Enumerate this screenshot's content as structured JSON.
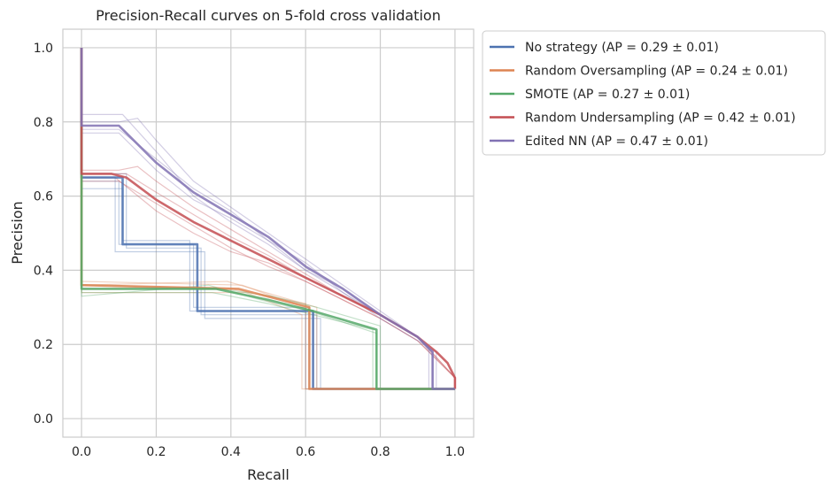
{
  "chart_data": {
    "type": "line",
    "title": "Precision-Recall curves on 5-fold cross validation",
    "xlabel": "Recall",
    "ylabel": "Precision",
    "xlim": [
      -0.05,
      1.05
    ],
    "ylim": [
      -0.05,
      1.05
    ],
    "xticks": [
      "0.0",
      "0.2",
      "0.4",
      "0.6",
      "0.8",
      "1.0"
    ],
    "yticks": [
      "0.0",
      "0.2",
      "0.4",
      "0.6",
      "0.8",
      "1.0"
    ],
    "grid": true,
    "legend_position": "outside-right",
    "series": [
      {
        "name": "No strategy (AP = 0.29 ± 0.01)",
        "color": "#4c72b0",
        "points": [
          [
            0,
            1
          ],
          [
            0,
            0.65
          ],
          [
            0.11,
            0.65
          ],
          [
            0.11,
            0.47
          ],
          [
            0.31,
            0.47
          ],
          [
            0.31,
            0.29
          ],
          [
            0.62,
            0.29
          ],
          [
            0.62,
            0.08
          ],
          [
            1,
            0.08
          ]
        ],
        "folds": [
          [
            [
              0,
              1
            ],
            [
              0,
              0.64
            ],
            [
              0.1,
              0.64
            ],
            [
              0.1,
              0.47
            ],
            [
              0.3,
              0.47
            ],
            [
              0.3,
              0.3
            ],
            [
              0.61,
              0.3
            ],
            [
              0.61,
              0.08
            ],
            [
              1,
              0.08
            ]
          ],
          [
            [
              0,
              1
            ],
            [
              0,
              0.66
            ],
            [
              0.12,
              0.66
            ],
            [
              0.12,
              0.46
            ],
            [
              0.32,
              0.46
            ],
            [
              0.32,
              0.28
            ],
            [
              0.63,
              0.28
            ],
            [
              0.63,
              0.08
            ],
            [
              1,
              0.08
            ]
          ],
          [
            [
              0,
              1
            ],
            [
              0,
              0.62
            ],
            [
              0.11,
              0.62
            ],
            [
              0.11,
              0.48
            ],
            [
              0.29,
              0.48
            ],
            [
              0.29,
              0.29
            ],
            [
              0.6,
              0.29
            ],
            [
              0.6,
              0.08
            ],
            [
              1,
              0.08
            ]
          ],
          [
            [
              0,
              1
            ],
            [
              0,
              0.65
            ],
            [
              0.09,
              0.65
            ],
            [
              0.09,
              0.45
            ],
            [
              0.33,
              0.45
            ],
            [
              0.33,
              0.27
            ],
            [
              0.64,
              0.27
            ],
            [
              0.64,
              0.08
            ],
            [
              1,
              0.08
            ]
          ]
        ]
      },
      {
        "name": "Random Oversampling (AP = 0.24 ± 0.01)",
        "color": "#dd8452",
        "points": [
          [
            0,
            1
          ],
          [
            0,
            0.36
          ],
          [
            0.42,
            0.35
          ],
          [
            0.61,
            0.3
          ],
          [
            0.61,
            0.08
          ],
          [
            1,
            0.08
          ]
        ],
        "folds": [
          [
            [
              0,
              1
            ],
            [
              0,
              0.35
            ],
            [
              0.4,
              0.35
            ],
            [
              0.6,
              0.31
            ],
            [
              0.6,
              0.08
            ],
            [
              1,
              0.08
            ]
          ],
          [
            [
              0,
              1
            ],
            [
              0,
              0.37
            ],
            [
              0.43,
              0.36
            ],
            [
              0.62,
              0.29
            ],
            [
              0.62,
              0.08
            ],
            [
              1,
              0.08
            ]
          ],
          [
            [
              0,
              1
            ],
            [
              0,
              0.34
            ],
            [
              0.44,
              0.34
            ],
            [
              0.59,
              0.28
            ],
            [
              0.59,
              0.08
            ],
            [
              1,
              0.08
            ]
          ],
          [
            [
              0,
              1
            ],
            [
              0,
              0.36
            ],
            [
              0.39,
              0.37
            ],
            [
              0.63,
              0.3
            ],
            [
              0.63,
              0.08
            ],
            [
              1,
              0.08
            ]
          ]
        ]
      },
      {
        "name": "SMOTE (AP = 0.27 ± 0.01)",
        "color": "#55a868",
        "points": [
          [
            0,
            1
          ],
          [
            0,
            0.35
          ],
          [
            0.36,
            0.35
          ],
          [
            0.5,
            0.32
          ],
          [
            0.62,
            0.29
          ],
          [
            0.79,
            0.24
          ],
          [
            0.79,
            0.08
          ],
          [
            1,
            0.08
          ]
        ],
        "folds": [
          [
            [
              0,
              1
            ],
            [
              0,
              0.34
            ],
            [
              0.35,
              0.34
            ],
            [
              0.5,
              0.31
            ],
            [
              0.62,
              0.28
            ],
            [
              0.78,
              0.24
            ],
            [
              0.78,
              0.08
            ],
            [
              1,
              0.08
            ]
          ],
          [
            [
              0,
              1
            ],
            [
              0,
              0.36
            ],
            [
              0.37,
              0.35
            ],
            [
              0.51,
              0.33
            ],
            [
              0.63,
              0.3
            ],
            [
              0.8,
              0.25
            ],
            [
              0.8,
              0.08
            ],
            [
              1,
              0.08
            ]
          ],
          [
            [
              0,
              1
            ],
            [
              0,
              0.33
            ],
            [
              0.34,
              0.36
            ],
            [
              0.48,
              0.32
            ],
            [
              0.61,
              0.29
            ],
            [
              0.79,
              0.23
            ],
            [
              0.79,
              0.08
            ],
            [
              1,
              0.08
            ]
          ]
        ]
      },
      {
        "name": "Random Undersampling (AP = 0.42 ± 0.01)",
        "color": "#c44e52",
        "points": [
          [
            0,
            1
          ],
          [
            0,
            0.66
          ],
          [
            0.08,
            0.66
          ],
          [
            0.12,
            0.65
          ],
          [
            0.2,
            0.59
          ],
          [
            0.3,
            0.53
          ],
          [
            0.4,
            0.48
          ],
          [
            0.5,
            0.43
          ],
          [
            0.6,
            0.38
          ],
          [
            0.7,
            0.33
          ],
          [
            0.8,
            0.28
          ],
          [
            0.9,
            0.22
          ],
          [
            0.95,
            0.18
          ],
          [
            0.98,
            0.15
          ],
          [
            1,
            0.11
          ],
          [
            1,
            0.08
          ]
        ],
        "folds": [
          [
            [
              0,
              1
            ],
            [
              0,
              0.67
            ],
            [
              0.1,
              0.67
            ],
            [
              0.15,
              0.68
            ],
            [
              0.2,
              0.64
            ],
            [
              0.3,
              0.57
            ],
            [
              0.4,
              0.51
            ],
            [
              0.5,
              0.45
            ],
            [
              0.6,
              0.39
            ],
            [
              0.7,
              0.33
            ],
            [
              0.8,
              0.28
            ],
            [
              0.9,
              0.22
            ],
            [
              1,
              0.11
            ],
            [
              1,
              0.08
            ]
          ],
          [
            [
              0,
              1
            ],
            [
              0,
              0.64
            ],
            [
              0.1,
              0.64
            ],
            [
              0.2,
              0.58
            ],
            [
              0.3,
              0.52
            ],
            [
              0.4,
              0.46
            ],
            [
              0.5,
              0.41
            ],
            [
              0.6,
              0.37
            ],
            [
              0.7,
              0.32
            ],
            [
              0.8,
              0.27
            ],
            [
              0.9,
              0.21
            ],
            [
              1,
              0.11
            ],
            [
              1,
              0.08
            ]
          ],
          [
            [
              0,
              1
            ],
            [
              0,
              0.66
            ],
            [
              0.12,
              0.66
            ],
            [
              0.2,
              0.61
            ],
            [
              0.3,
              0.55
            ],
            [
              0.4,
              0.49
            ],
            [
              0.5,
              0.44
            ],
            [
              0.6,
              0.38
            ],
            [
              0.7,
              0.33
            ],
            [
              0.8,
              0.28
            ],
            [
              0.9,
              0.22
            ],
            [
              1,
              0.11
            ],
            [
              1,
              0.08
            ]
          ],
          [
            [
              0,
              1
            ],
            [
              0,
              0.65
            ],
            [
              0.09,
              0.65
            ],
            [
              0.2,
              0.56
            ],
            [
              0.3,
              0.5
            ],
            [
              0.4,
              0.45
            ],
            [
              0.5,
              0.42
            ],
            [
              0.6,
              0.37
            ],
            [
              0.7,
              0.32
            ],
            [
              0.8,
              0.27
            ],
            [
              0.9,
              0.21
            ],
            [
              1,
              0.11
            ],
            [
              1,
              0.08
            ]
          ]
        ]
      },
      {
        "name": "Edited NN (AP = 0.47 ± 0.01)",
        "color": "#8172b3",
        "points": [
          [
            0,
            1
          ],
          [
            0,
            0.79
          ],
          [
            0.1,
            0.79
          ],
          [
            0.12,
            0.77
          ],
          [
            0.2,
            0.69
          ],
          [
            0.3,
            0.61
          ],
          [
            0.4,
            0.55
          ],
          [
            0.5,
            0.49
          ],
          [
            0.6,
            0.41
          ],
          [
            0.7,
            0.35
          ],
          [
            0.8,
            0.28
          ],
          [
            0.9,
            0.22
          ],
          [
            0.94,
            0.18
          ],
          [
            0.94,
            0.08
          ],
          [
            1,
            0.08
          ]
        ],
        "folds": [
          [
            [
              0,
              1
            ],
            [
              0,
              0.8
            ],
            [
              0.1,
              0.8
            ],
            [
              0.15,
              0.81
            ],
            [
              0.2,
              0.75
            ],
            [
              0.3,
              0.64
            ],
            [
              0.4,
              0.57
            ],
            [
              0.5,
              0.5
            ],
            [
              0.6,
              0.43
            ],
            [
              0.7,
              0.36
            ],
            [
              0.8,
              0.29
            ],
            [
              0.9,
              0.22
            ],
            [
              0.93,
              0.19
            ],
            [
              0.93,
              0.08
            ],
            [
              1,
              0.08
            ]
          ],
          [
            [
              0,
              1
            ],
            [
              0,
              0.78
            ],
            [
              0.1,
              0.78
            ],
            [
              0.2,
              0.7
            ],
            [
              0.3,
              0.62
            ],
            [
              0.4,
              0.56
            ],
            [
              0.5,
              0.48
            ],
            [
              0.6,
              0.4
            ],
            [
              0.7,
              0.34
            ],
            [
              0.8,
              0.27
            ],
            [
              0.9,
              0.21
            ],
            [
              0.95,
              0.18
            ],
            [
              0.95,
              0.08
            ],
            [
              1,
              0.08
            ]
          ],
          [
            [
              0,
              1
            ],
            [
              0,
              0.82
            ],
            [
              0.11,
              0.82
            ],
            [
              0.2,
              0.72
            ],
            [
              0.3,
              0.6
            ],
            [
              0.4,
              0.53
            ],
            [
              0.5,
              0.47
            ],
            [
              0.6,
              0.4
            ],
            [
              0.7,
              0.35
            ],
            [
              0.8,
              0.28
            ],
            [
              0.9,
              0.22
            ],
            [
              0.94,
              0.17
            ],
            [
              0.94,
              0.08
            ],
            [
              1,
              0.08
            ]
          ],
          [
            [
              0,
              1
            ],
            [
              0,
              0.77
            ],
            [
              0.1,
              0.77
            ],
            [
              0.2,
              0.67
            ],
            [
              0.3,
              0.59
            ],
            [
              0.4,
              0.54
            ],
            [
              0.5,
              0.48
            ],
            [
              0.6,
              0.42
            ],
            [
              0.7,
              0.34
            ],
            [
              0.8,
              0.28
            ],
            [
              0.9,
              0.22
            ],
            [
              0.94,
              0.18
            ],
            [
              0.94,
              0.08
            ],
            [
              1,
              0.08
            ]
          ]
        ]
      }
    ]
  }
}
